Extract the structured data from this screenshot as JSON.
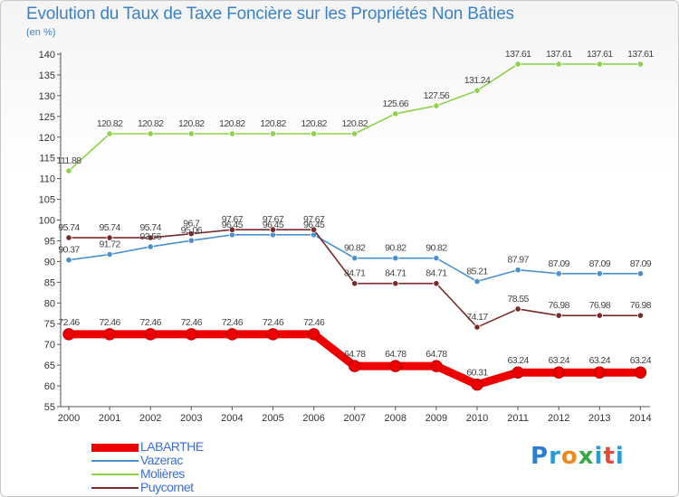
{
  "title": "Evolution du Taux de Taxe Foncière sur les Propriétés Non Bâties",
  "subtitle": "(en %)",
  "logo": {
    "text": "Proxiti",
    "letters": [
      {
        "ch": "P",
        "color": "#2a7fd0"
      },
      {
        "ch": "r",
        "color": "#2a9ad8"
      },
      {
        "ch": "o",
        "color": "#f08a1c"
      },
      {
        "ch": "x",
        "color": "#3aa84a"
      },
      {
        "ch": "i",
        "color": "#2a9ad8"
      },
      {
        "ch": "t",
        "color": "#e04c3c"
      },
      {
        "ch": "i",
        "color": "#2a9ad8"
      }
    ]
  },
  "chart_data": {
    "type": "line",
    "title": "Evolution du Taux de Taxe Foncière sur les Propriétés Non Bâties",
    "ylabel": "(en %)",
    "xlabel": "",
    "ylim": [
      55,
      140
    ],
    "yticks": [
      55,
      60,
      65,
      70,
      75,
      80,
      85,
      90,
      95,
      100,
      105,
      110,
      115,
      120,
      125,
      130,
      135,
      140
    ],
    "grid": false,
    "legend_position": "bottom-left",
    "categories": [
      "2000",
      "2001",
      "2002",
      "2003",
      "2004",
      "2005",
      "2006",
      "2007",
      "2008",
      "2009",
      "2010",
      "2011",
      "2012",
      "2013",
      "2014"
    ],
    "series": [
      {
        "name": "Molières",
        "color": "#8cd24a",
        "stroke": "#8cd24a",
        "values": [
          111.88,
          120.82,
          120.82,
          120.82,
          120.82,
          120.82,
          120.82,
          120.82,
          125.66,
          127.56,
          131.24,
          137.61,
          137.61,
          137.61,
          137.61
        ],
        "labels": [
          "111.88",
          "120.82",
          "120.82",
          "120.82",
          "120.82",
          "120.82",
          "120.82",
          "120.82",
          "125.66",
          "127.56",
          "131.24",
          "137.61",
          "137.61",
          "137.61",
          "137.61"
        ]
      },
      {
        "name": "Vazerac",
        "color": "#4a90d0",
        "stroke": "#4a90d0",
        "values": [
          90.37,
          91.72,
          93.56,
          95.06,
          96.45,
          96.45,
          96.45,
          90.82,
          90.82,
          90.82,
          85.21,
          87.97,
          87.09,
          87.09,
          87.09
        ],
        "labels": [
          "90.37",
          "91.72",
          "93.56",
          "95.06",
          "96.45",
          "96.45",
          "96.45",
          "90.82",
          "90.82",
          "90.82",
          "85.21",
          "87.97",
          "87.09",
          "87.09",
          "87.09"
        ]
      },
      {
        "name": "Puycornet",
        "color": "#7a2a2a",
        "stroke": "#7a2a2a",
        "values": [
          95.74,
          95.74,
          95.74,
          96.7,
          97.67,
          97.67,
          97.67,
          84.71,
          84.71,
          84.71,
          74.17,
          78.55,
          76.98,
          76.98,
          76.98
        ],
        "labels": [
          "95.74",
          "95.74",
          "95.74",
          "96.7",
          "97.67",
          "97.67",
          "97.67",
          "84.71",
          "84.71",
          "84.71",
          "74.17",
          "78.55",
          "76.98",
          "76.98",
          "76.98"
        ]
      },
      {
        "name": "LABARTHE",
        "color": "#ee0000",
        "stroke": "#ee0000",
        "thick": true,
        "values": [
          72.46,
          72.46,
          72.46,
          72.46,
          72.46,
          72.46,
          72.46,
          64.78,
          64.78,
          64.78,
          60.31,
          63.24,
          63.24,
          63.24,
          63.24
        ],
        "labels": [
          "72.46",
          "72.46",
          "72.46",
          "72.46",
          "72.46",
          "72.46",
          "72.46",
          "64.78",
          "64.78",
          "64.78",
          "60.31",
          "63.24",
          "63.24",
          "63.24",
          "63.24"
        ]
      }
    ],
    "legend": [
      "LABARTHE",
      "Vazerac",
      "Molières",
      "Puycornet"
    ]
  }
}
